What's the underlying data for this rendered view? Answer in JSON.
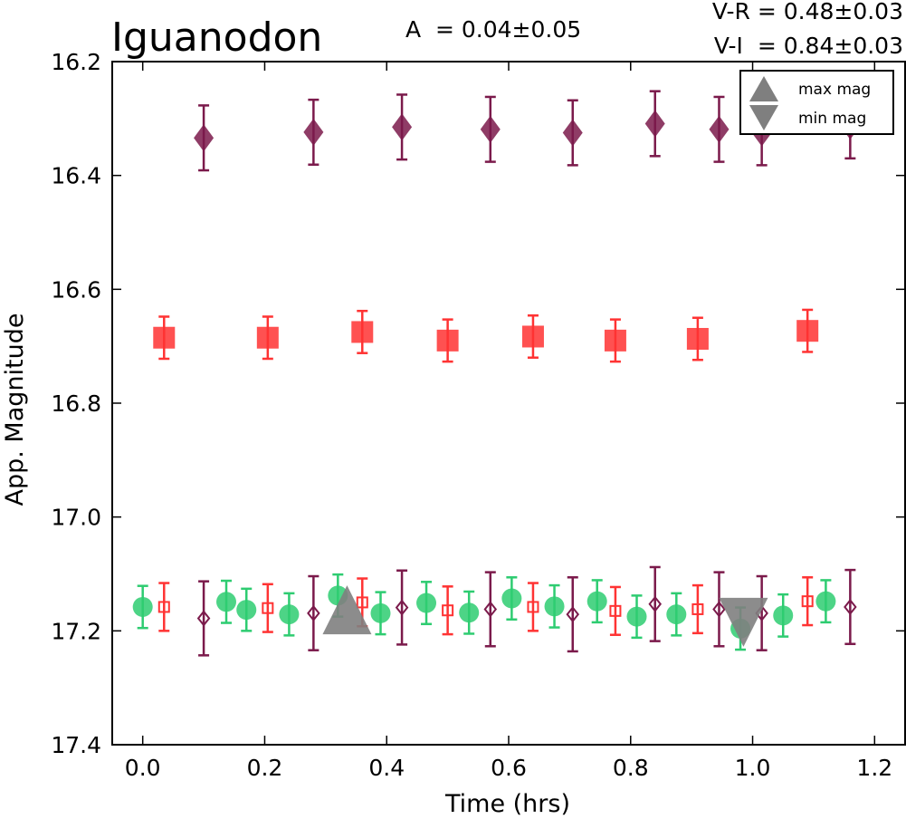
{
  "chart_data": {
    "type": "scatter",
    "title": "Iguanodon",
    "annotations": {
      "amplitude": "A  = 0.04±0.05",
      "v_minus_r": "V-R = 0.48±0.03",
      "v_minus_i": "V-I  = 0.84±0.03"
    },
    "xlabel": "Time (hrs)",
    "ylabel": "App. Magnitude",
    "xlim": [
      -0.05,
      1.25
    ],
    "ylim": [
      17.4,
      16.2
    ],
    "y_inverted": true,
    "xticks": [
      0.0,
      0.2,
      0.4,
      0.6,
      0.8,
      1.0,
      1.2
    ],
    "xtick_labels": [
      "0.0",
      "0.2",
      "0.4",
      "0.6",
      "0.8",
      "1.0",
      "1.2"
    ],
    "yticks": [
      16.2,
      16.4,
      16.6,
      16.8,
      17.0,
      17.2,
      17.4
    ],
    "ytick_labels": [
      "16.2",
      "16.4",
      "16.6",
      "16.8",
      "17.0",
      "17.2",
      "17.4"
    ],
    "grid": false,
    "legend": {
      "position": "top-right",
      "entries": [
        {
          "label": "max mag",
          "marker": "triangle-up",
          "color": "#7f7f7f"
        },
        {
          "label": "min mag",
          "marker": "triangle-down",
          "color": "#7f7f7f"
        }
      ]
    },
    "colors": {
      "V": "#2ecc71",
      "R": "#ff3333",
      "I": "#7b1a4b",
      "extrema": "#7f7f7f"
    },
    "series": [
      {
        "marker": "circle",
        "filled": true,
        "color": "#2ecc71",
        "x": [
          0.0,
          0.137,
          0.17,
          0.24,
          0.32,
          0.39,
          0.465,
          0.535,
          0.605,
          0.675,
          0.745,
          0.81,
          0.875,
          0.98,
          1.05,
          1.12
        ],
        "y": [
          17.158,
          17.149,
          17.163,
          17.171,
          17.138,
          17.169,
          17.151,
          17.168,
          17.143,
          17.157,
          17.148,
          17.175,
          17.171,
          17.196,
          17.173,
          17.148
        ],
        "yerr": [
          0.037,
          0.037,
          0.037,
          0.037,
          0.037,
          0.037,
          0.037,
          0.037,
          0.037,
          0.037,
          0.037,
          0.037,
          0.037,
          0.037,
          0.037,
          0.037
        ]
      },
      {
        "marker": "square",
        "filled": false,
        "color": "#ff3333",
        "x": [
          0.035,
          0.205,
          0.36,
          0.5,
          0.64,
          0.775,
          0.91,
          1.09
        ],
        "y": [
          17.158,
          17.16,
          17.15,
          17.164,
          17.158,
          17.165,
          17.162,
          17.148
        ],
        "yerr": [
          0.042,
          0.042,
          0.042,
          0.042,
          0.042,
          0.042,
          0.042,
          0.042
        ]
      },
      {
        "marker": "diamond",
        "filled": false,
        "color": "#7b1a4b",
        "x": [
          0.1,
          0.28,
          0.425,
          0.57,
          0.705,
          0.84,
          0.945,
          1.015,
          1.16
        ],
        "y": [
          17.178,
          17.169,
          17.159,
          17.162,
          17.171,
          17.153,
          17.162,
          17.169,
          17.158
        ],
        "yerr": [
          0.065,
          0.065,
          0.065,
          0.065,
          0.065,
          0.065,
          0.065,
          0.065,
          0.065
        ]
      },
      {
        "marker": "square",
        "filled": true,
        "color": "#ff3333",
        "x": [
          0.035,
          0.205,
          0.36,
          0.5,
          0.64,
          0.775,
          0.91,
          1.09
        ],
        "y": [
          16.685,
          16.685,
          16.675,
          16.69,
          16.683,
          16.69,
          16.687,
          16.673
        ],
        "yerr": [
          0.037,
          0.037,
          0.037,
          0.037,
          0.037,
          0.037,
          0.037,
          0.037
        ]
      },
      {
        "marker": "diamond",
        "filled": true,
        "color": "#7b1a4b",
        "x": [
          0.1,
          0.28,
          0.425,
          0.57,
          0.705,
          0.84,
          0.945,
          1.015,
          1.16
        ],
        "y": [
          16.334,
          16.324,
          16.315,
          16.319,
          16.325,
          16.309,
          16.319,
          16.325,
          16.313
        ],
        "yerr": [
          0.057,
          0.057,
          0.057,
          0.057,
          0.057,
          0.057,
          0.057,
          0.057,
          0.057
        ]
      }
    ],
    "extrema": [
      {
        "label": "max mag",
        "marker": "triangle-up",
        "x": 0.335,
        "y": 17.163
      },
      {
        "label": "min mag",
        "marker": "triangle-down",
        "x": 0.985,
        "y": 17.185
      }
    ]
  }
}
